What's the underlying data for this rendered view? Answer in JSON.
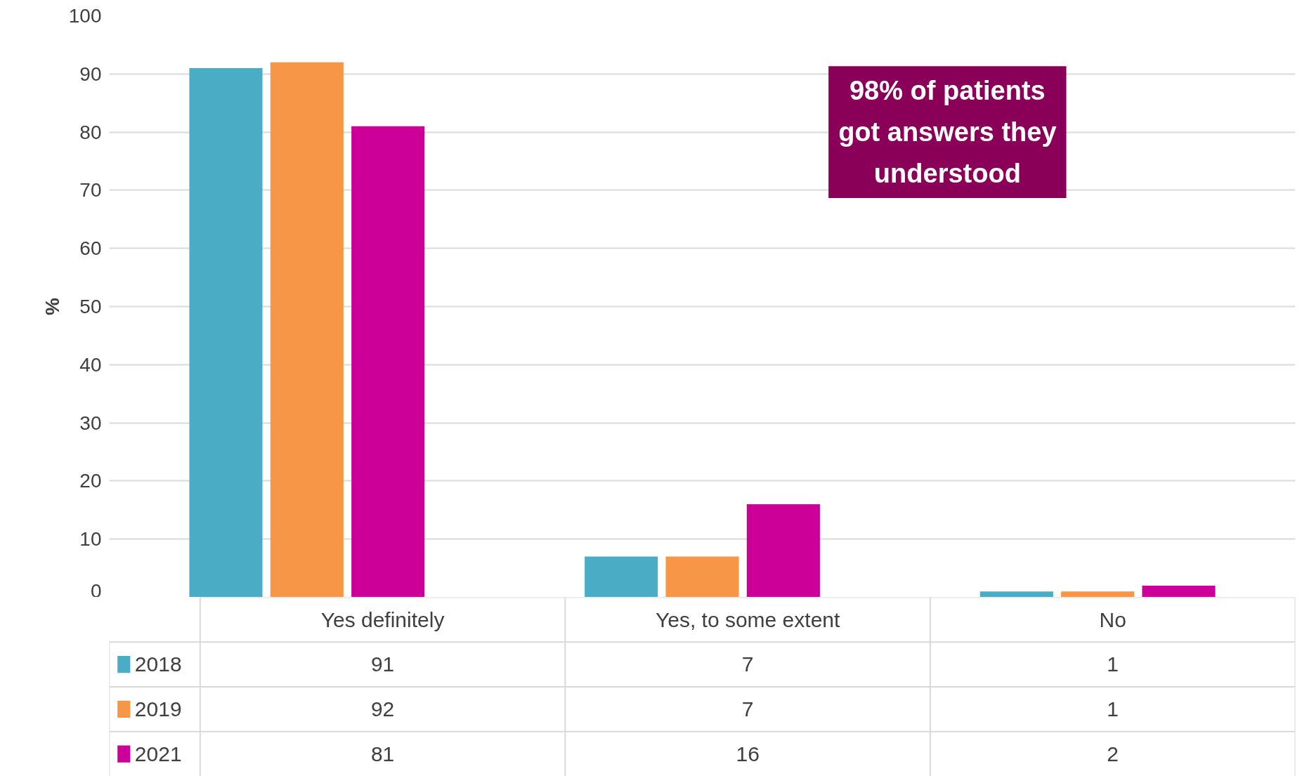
{
  "chart_data": {
    "type": "bar",
    "ylabel": "%",
    "categories": [
      "Yes definitely",
      "Yes, to some extent",
      "No"
    ],
    "series": [
      {
        "name": "2018",
        "color": "#4bacc6",
        "values": [
          91,
          7,
          1
        ]
      },
      {
        "name": "2019",
        "color": "#f79646",
        "values": [
          92,
          7,
          1
        ]
      },
      {
        "name": "2021",
        "color": "#cc0099",
        "values": [
          81,
          16,
          2
        ]
      }
    ],
    "ylim": [
      0,
      100
    ],
    "yticks": [
      0,
      10,
      20,
      30,
      40,
      50,
      60,
      70,
      80,
      90,
      100
    ],
    "grid": "y",
    "legend": "bottom",
    "data_labels": true,
    "annotations": [
      "98% of patients got answers they understood"
    ]
  }
}
